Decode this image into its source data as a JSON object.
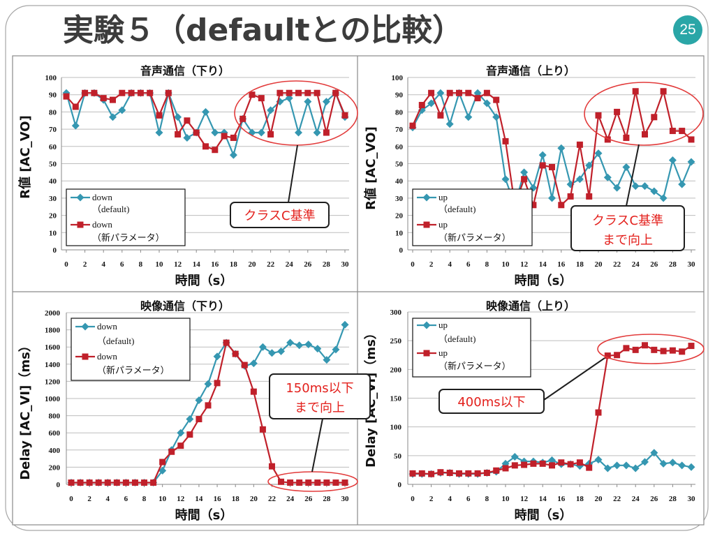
{
  "slide": {
    "title": "実験５（defaultとの比較）",
    "page_number": "25",
    "accent_color": "#2aa6a7",
    "title_color": "#3c3c3c"
  },
  "chart_data": [
    {
      "type": "line",
      "title": "音声通信（下り）",
      "xlabel": "時間（s）",
      "ylabel": "R値 [AC_VO]",
      "xlim": [
        0,
        30
      ],
      "ylim": [
        0,
        100
      ],
      "x_ticks": [
        0,
        2,
        4,
        6,
        8,
        10,
        12,
        14,
        16,
        18,
        20,
        22,
        24,
        26,
        28,
        30
      ],
      "y_ticks": [
        0,
        10,
        20,
        30,
        40,
        50,
        60,
        70,
        80,
        90,
        100
      ],
      "grid": "horizontal",
      "legend": "bottom-left",
      "x": [
        0,
        1,
        2,
        3,
        4,
        5,
        6,
        7,
        8,
        9,
        10,
        11,
        12,
        13,
        14,
        15,
        16,
        17,
        18,
        19,
        20,
        21,
        22,
        23,
        24,
        25,
        26,
        27,
        28,
        29,
        30
      ],
      "series": [
        {
          "name": "down",
          "note": "（default)",
          "color": "#3597b1",
          "marker": "diamond",
          "values": [
            91,
            72,
            91,
            91,
            87,
            77,
            81,
            91,
            91,
            91,
            68,
            91,
            77,
            65,
            68,
            80,
            68,
            68,
            55,
            76,
            68,
            68,
            81,
            86,
            88,
            68,
            86,
            68,
            86,
            91,
            77
          ]
        },
        {
          "name": "down",
          "note": "（新パラメータ）",
          "color": "#c0202a",
          "marker": "square",
          "values": [
            89,
            83,
            91,
            91,
            88,
            87,
            91,
            91,
            91,
            91,
            78,
            91,
            67,
            75,
            68,
            60,
            58,
            66,
            65,
            76,
            90,
            88,
            67,
            91,
            91,
            91,
            91,
            91,
            68,
            91,
            78
          ]
        }
      ],
      "annotation": {
        "lines": [
          "クラスC基準"
        ],
        "text_color": "#e3201c",
        "ellipse_color": "#e23a3a"
      }
    },
    {
      "type": "line",
      "title": "音声通信（上り）",
      "xlabel": "時間（s）",
      "ylabel": "R値 [AC_VO]",
      "xlim": [
        0,
        30
      ],
      "ylim": [
        0,
        100
      ],
      "x_ticks": [
        0,
        2,
        4,
        6,
        8,
        10,
        12,
        14,
        16,
        18,
        20,
        22,
        24,
        26,
        28,
        30
      ],
      "y_ticks": [
        0,
        10,
        20,
        30,
        40,
        50,
        60,
        70,
        80,
        90,
        100
      ],
      "grid": "horizontal",
      "legend": "bottom-left",
      "x": [
        0,
        1,
        2,
        3,
        4,
        5,
        6,
        7,
        8,
        9,
        10,
        11,
        12,
        13,
        14,
        15,
        16,
        17,
        18,
        19,
        20,
        21,
        22,
        23,
        24,
        25,
        26,
        27,
        28,
        29,
        30
      ],
      "series": [
        {
          "name": "up",
          "note": "（default)",
          "color": "#3597b1",
          "marker": "diamond",
          "values": [
            71,
            81,
            85,
            91,
            73,
            91,
            77,
            91,
            85,
            77,
            41,
            26,
            45,
            36,
            55,
            30,
            59,
            38,
            41,
            49,
            56,
            42,
            36,
            48,
            37,
            37,
            34,
            30,
            52,
            38,
            51
          ]
        },
        {
          "name": "up",
          "note": "（新パラメータ）",
          "color": "#c0202a",
          "marker": "square",
          "values": [
            72,
            84,
            91,
            78,
            91,
            91,
            91,
            88,
            91,
            87,
            63,
            26,
            41,
            26,
            49,
            48,
            26,
            31,
            61,
            31,
            78,
            64,
            80,
            65,
            92,
            67,
            77,
            92,
            69,
            69,
            64
          ],
          "highlight": {
            "index": 11,
            "color": "#f2a3a3"
          }
        }
      ],
      "annotation": {
        "lines": [
          "クラスC基準",
          "まで向上"
        ],
        "text_color": "#e3201c",
        "ellipse_color": "#e23a3a"
      }
    },
    {
      "type": "line",
      "title": "映像通信（下り）",
      "xlabel": "時間（s）",
      "ylabel": "Delay [AC_VI]（ms）",
      "xlim": [
        0,
        30
      ],
      "ylim": [
        0,
        2000
      ],
      "x_ticks": [
        0,
        2,
        4,
        6,
        8,
        10,
        12,
        14,
        16,
        18,
        20,
        22,
        24,
        26,
        28,
        30
      ],
      "y_ticks": [
        0,
        200,
        400,
        600,
        800,
        1000,
        1200,
        1400,
        1600,
        1800,
        2000
      ],
      "grid": "horizontal",
      "legend": "top-left",
      "x": [
        0,
        1,
        2,
        3,
        4,
        5,
        6,
        7,
        8,
        9,
        10,
        11,
        12,
        13,
        14,
        15,
        16,
        17,
        18,
        19,
        20,
        21,
        22,
        23,
        24,
        25,
        26,
        27,
        28,
        29,
        30
      ],
      "series": [
        {
          "name": "down",
          "note": "（default)",
          "color": "#3597b1",
          "marker": "diamond",
          "values": [
            20,
            20,
            20,
            20,
            20,
            20,
            20,
            20,
            20,
            20,
            160,
            400,
            600,
            760,
            980,
            1170,
            1490,
            1650,
            1520,
            1380,
            1410,
            1600,
            1530,
            1550,
            1650,
            1620,
            1630,
            1580,
            1450,
            1570,
            1860
          ]
        },
        {
          "name": "down",
          "note": "（新パラメータ）",
          "color": "#c0202a",
          "marker": "square",
          "values": [
            20,
            20,
            20,
            20,
            20,
            20,
            20,
            20,
            20,
            20,
            260,
            380,
            450,
            580,
            760,
            920,
            1180,
            1650,
            1520,
            1390,
            1080,
            640,
            210,
            30,
            20,
            20,
            20,
            20,
            20,
            20,
            20
          ]
        }
      ],
      "annotation": {
        "lines": [
          "150ms以下",
          "まで向上"
        ],
        "text_color": "#e3201c",
        "ellipse_color": "#e23a3a"
      }
    },
    {
      "type": "line",
      "title": "映像通信（上り）",
      "xlabel": "時間（s）",
      "ylabel": "Delay [AC_VI]（ms）",
      "xlim": [
        0,
        30
      ],
      "ylim": [
        0,
        300
      ],
      "x_ticks": [
        0,
        2,
        4,
        6,
        8,
        10,
        12,
        14,
        16,
        18,
        20,
        22,
        24,
        26,
        28,
        30
      ],
      "y_ticks": [
        0,
        50,
        100,
        150,
        200,
        250,
        300
      ],
      "grid": "horizontal",
      "legend": "top-left",
      "x": [
        0,
        1,
        2,
        3,
        4,
        5,
        6,
        7,
        8,
        9,
        10,
        11,
        12,
        13,
        14,
        15,
        16,
        17,
        18,
        19,
        20,
        21,
        22,
        23,
        24,
        25,
        26,
        27,
        28,
        29,
        30
      ],
      "series": [
        {
          "name": "up",
          "note": "（default)",
          "color": "#3597b1",
          "marker": "diamond",
          "values": [
            18,
            18,
            18,
            20,
            20,
            18,
            18,
            18,
            20,
            22,
            36,
            48,
            40,
            40,
            38,
            42,
            35,
            35,
            32,
            36,
            43,
            28,
            33,
            33,
            28,
            39,
            55,
            36,
            38,
            33,
            30
          ]
        },
        {
          "name": "up",
          "note": "（新パラメータ）",
          "color": "#c0202a",
          "marker": "square",
          "values": [
            19,
            19,
            18,
            21,
            20,
            19,
            19,
            19,
            20,
            24,
            28,
            33,
            34,
            36,
            36,
            33,
            38,
            35,
            38,
            29,
            125,
            224,
            225,
            237,
            234,
            242,
            234,
            232,
            233,
            231,
            241
          ]
        }
      ],
      "annotation": {
        "lines": [
          "400ms以下"
        ],
        "text_color": "#e3201c",
        "ellipse_color": "#e23a3a"
      }
    }
  ]
}
